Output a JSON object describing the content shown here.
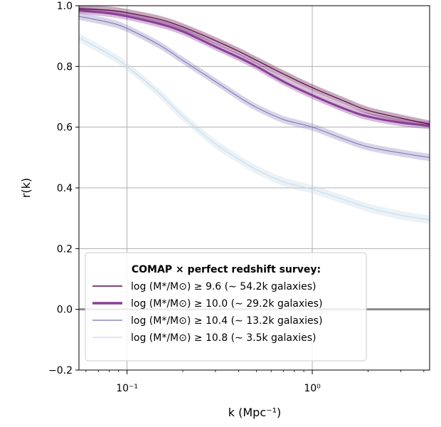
{
  "chart_data": {
    "type": "line",
    "xlabel": "k (Mpc⁻¹)",
    "ylabel": "r(k)",
    "x_scale": "log",
    "xlim": [
      0.055,
      4.3
    ],
    "ylim": [
      -0.2,
      1.0
    ],
    "yticks": [
      "−0.2",
      "0.0",
      "0.2",
      "0.4",
      "0.6",
      "0.8",
      "1.0"
    ],
    "xticks": [
      "10⁻¹",
      "10⁰"
    ],
    "grid": true,
    "legend": {
      "placement": "lower-left",
      "title": "COMAP × perfect redshift survey:"
    },
    "x": [
      0.055,
      0.08,
      0.1,
      0.15,
      0.2,
      0.3,
      0.4,
      0.5,
      0.7,
      1.0,
      1.5,
      2.0,
      3.0,
      4.3
    ],
    "series": [
      {
        "name": "log (M*/M⊙) ≥ 9.6 (∼ 54.2k galaxies)",
        "color": "#5c0a45",
        "values": [
          0.99,
          0.985,
          0.977,
          0.955,
          0.93,
          0.885,
          0.85,
          0.82,
          0.775,
          0.73,
          0.685,
          0.655,
          0.63,
          0.61
        ]
      },
      {
        "name": "log (M*/M⊙) ≥ 10.0 (∼ 29.2k galaxies)",
        "color": "#8a3d97",
        "values": [
          0.985,
          0.975,
          0.965,
          0.94,
          0.915,
          0.865,
          0.83,
          0.8,
          0.75,
          0.705,
          0.66,
          0.635,
          0.615,
          0.605
        ]
      },
      {
        "name": "log (M*/M⊙) ≥ 10.4 (∼ 13.2k galaxies)",
        "color": "#7b6fb4",
        "values": [
          0.965,
          0.945,
          0.925,
          0.87,
          0.82,
          0.75,
          0.7,
          0.665,
          0.625,
          0.6,
          0.56,
          0.535,
          0.515,
          0.5
        ]
      },
      {
        "name": "log (M*/M⊙) ≥ 10.8 (∼ 3.5k galaxies)",
        "color": "#c7dbe9",
        "values": [
          0.895,
          0.84,
          0.8,
          0.71,
          0.635,
          0.545,
          0.495,
          0.46,
          0.42,
          0.395,
          0.36,
          0.335,
          0.31,
          0.295
        ]
      }
    ]
  }
}
